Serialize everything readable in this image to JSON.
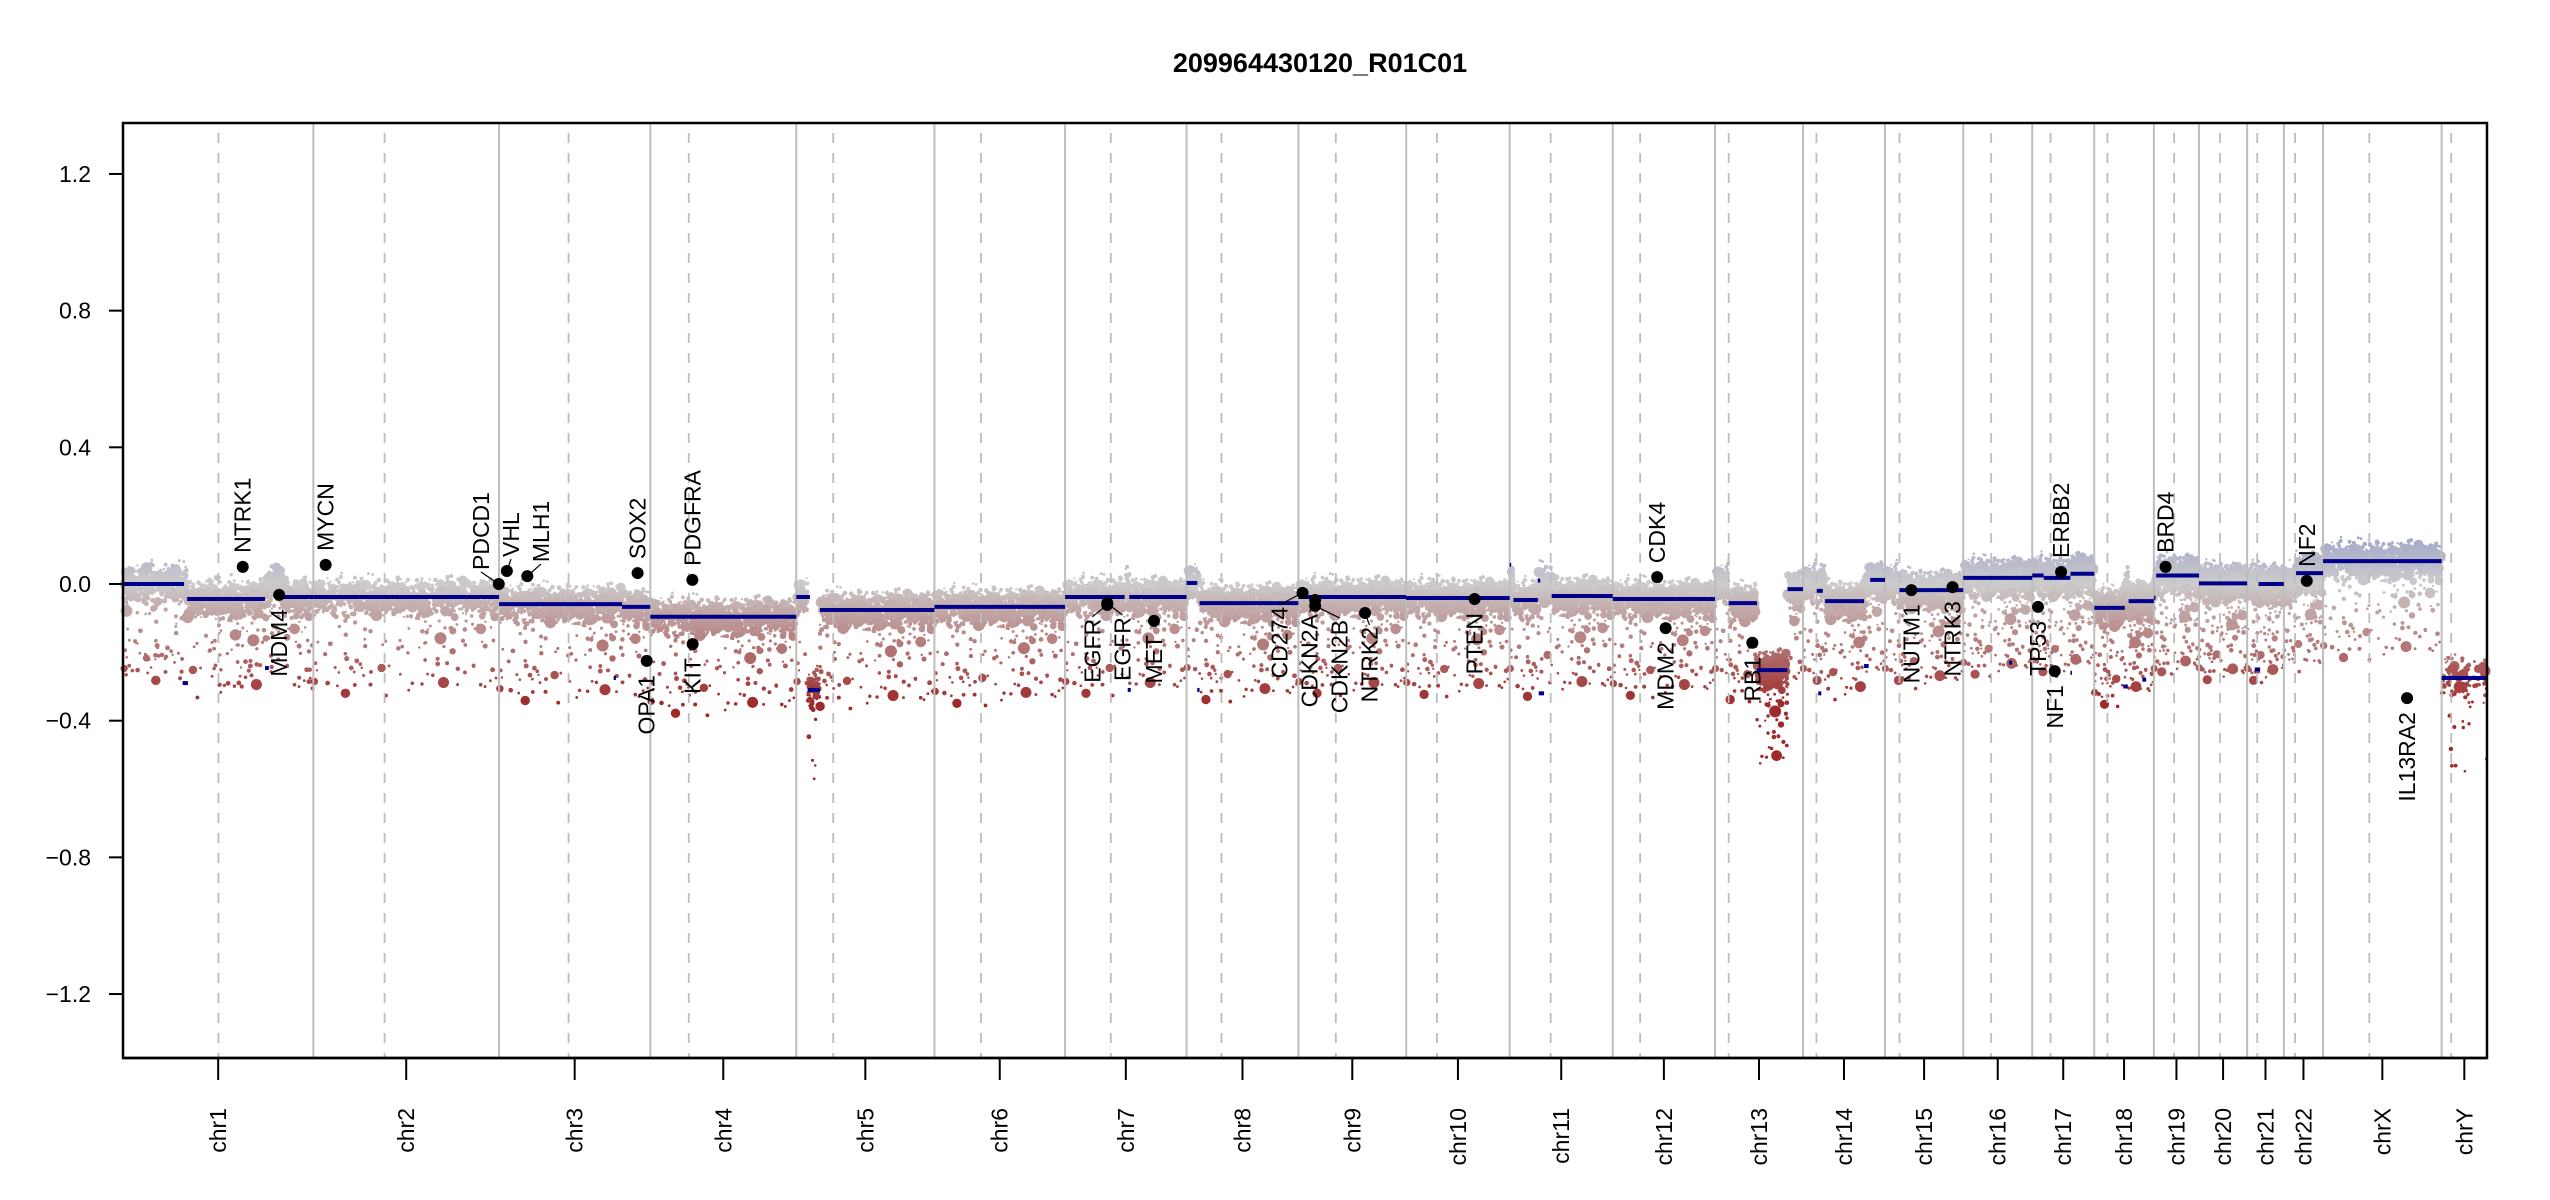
{
  "chart_data": {
    "type": "scatter",
    "title": "209964430120_R01C01",
    "xlabel": "",
    "ylabel": "",
    "ylim": [
      -1.35,
      1.35
    ],
    "y_ticks": [
      {
        "value": 1.2,
        "label": "1.2"
      },
      {
        "value": 0.8,
        "label": "0.8"
      },
      {
        "value": 0.4,
        "label": "0.4"
      },
      {
        "value": 0.0,
        "label": "0.0"
      },
      {
        "value": -0.4,
        "label": "−0.4"
      },
      {
        "value": -0.8,
        "label": "−0.8"
      },
      {
        "value": -1.2,
        "label": "−1.2"
      }
    ],
    "grid": false,
    "chromosomes": [
      {
        "name": "chr1",
        "length_mb": 249.25,
        "centromere_mb": 125.0
      },
      {
        "name": "chr2",
        "length_mb": 243.2,
        "centromere_mb": 93.3
      },
      {
        "name": "chr3",
        "length_mb": 198.0,
        "centromere_mb": 91.0
      },
      {
        "name": "chr4",
        "length_mb": 191.15,
        "centromere_mb": 50.4
      },
      {
        "name": "chr5",
        "length_mb": 180.9,
        "centromere_mb": 48.4
      },
      {
        "name": "chr6",
        "length_mb": 171.1,
        "centromere_mb": 61.0
      },
      {
        "name": "chr7",
        "length_mb": 159.1,
        "centromere_mb": 59.9
      },
      {
        "name": "chr8",
        "length_mb": 146.4,
        "centromere_mb": 45.6
      },
      {
        "name": "chr9",
        "length_mb": 141.2,
        "centromere_mb": 49.0
      },
      {
        "name": "chr10",
        "length_mb": 135.5,
        "centromere_mb": 40.2
      },
      {
        "name": "chr11",
        "length_mb": 135.0,
        "centromere_mb": 53.7
      },
      {
        "name": "chr12",
        "length_mb": 133.85,
        "centromere_mb": 35.8
      },
      {
        "name": "chr13",
        "length_mb": 115.2,
        "centromere_mb": 17.9
      },
      {
        "name": "chr14",
        "length_mb": 107.35,
        "centromere_mb": 17.6
      },
      {
        "name": "chr15",
        "length_mb": 102.5,
        "centromere_mb": 19.0
      },
      {
        "name": "chr16",
        "length_mb": 90.35,
        "centromere_mb": 36.6
      },
      {
        "name": "chr17",
        "length_mb": 81.2,
        "centromere_mb": 24.0
      },
      {
        "name": "chr18",
        "length_mb": 78.1,
        "centromere_mb": 17.2
      },
      {
        "name": "chr19",
        "length_mb": 59.1,
        "centromere_mb": 26.5
      },
      {
        "name": "chr20",
        "length_mb": 63.0,
        "centromere_mb": 27.5
      },
      {
        "name": "chr21",
        "length_mb": 48.1,
        "centromere_mb": 13.2
      },
      {
        "name": "chr22",
        "length_mb": 51.3,
        "centromere_mb": 14.7
      },
      {
        "name": "chrX",
        "length_mb": 155.3,
        "centromere_mb": 60.6
      },
      {
        "name": "chrY",
        "length_mb": 59.4,
        "centromere_mb": 12.5
      }
    ],
    "segments": [
      {
        "chr": "chr1",
        "start_mb": 0,
        "end_mb": 80,
        "value": 0.0
      },
      {
        "chr": "chr1",
        "start_mb": 78,
        "end_mb": 85,
        "value": -0.29
      },
      {
        "chr": "chr1",
        "start_mb": 84,
        "end_mb": 186,
        "value": -0.044
      },
      {
        "chr": "chr1",
        "start_mb": 186,
        "end_mb": 191,
        "value": -0.246
      },
      {
        "chr": "chr1",
        "start_mb": 209,
        "end_mb": 249.25,
        "value": -0.038
      },
      {
        "chr": "chr2",
        "start_mb": 0,
        "end_mb": 243.2,
        "value": -0.038
      },
      {
        "chr": "chr3",
        "start_mb": 0,
        "end_mb": 161,
        "value": -0.059
      },
      {
        "chr": "chr3",
        "start_mb": 161,
        "end_mb": 198,
        "value": -0.067
      },
      {
        "chr": "chr3",
        "start_mb": 150,
        "end_mb": 153,
        "value": -0.275
      },
      {
        "chr": "chr4",
        "start_mb": 0,
        "end_mb": 191.15,
        "value": -0.096
      },
      {
        "chr": "chr5",
        "start_mb": 0,
        "end_mb": 18,
        "value": -0.038
      },
      {
        "chr": "chr5",
        "start_mb": 15,
        "end_mb": 31,
        "value": -0.31
      },
      {
        "chr": "chr5",
        "start_mb": 31,
        "end_mb": 180.9,
        "value": -0.076
      },
      {
        "chr": "chr6",
        "start_mb": 0,
        "end_mb": 171.1,
        "value": -0.067
      },
      {
        "chr": "chr7",
        "start_mb": 0,
        "end_mb": 78,
        "value": -0.038
      },
      {
        "chr": "chr7",
        "start_mb": 82,
        "end_mb": 86,
        "value": -0.31
      },
      {
        "chr": "chr7",
        "start_mb": 84,
        "end_mb": 159.1,
        "value": -0.038
      },
      {
        "chr": "chr8",
        "start_mb": 0,
        "end_mb": 14,
        "value": 0.003
      },
      {
        "chr": "chr8",
        "start_mb": 14,
        "end_mb": 17,
        "value": -0.31
      },
      {
        "chr": "chr8",
        "start_mb": 17,
        "end_mb": 146.4,
        "value": -0.056
      },
      {
        "chr": "chr9",
        "start_mb": 0,
        "end_mb": 141.2,
        "value": -0.038
      },
      {
        "chr": "chr10",
        "start_mb": 0,
        "end_mb": 135.5,
        "value": -0.041
      },
      {
        "chr": "chr11",
        "start_mb": 0,
        "end_mb": 2,
        "value": 0.056
      },
      {
        "chr": "chr11",
        "start_mb": 5,
        "end_mb": 37,
        "value": -0.047
      },
      {
        "chr": "chr11",
        "start_mb": 37,
        "end_mb": 40,
        "value": 0.01
      },
      {
        "chr": "chr11",
        "start_mb": 38,
        "end_mb": 45,
        "value": -0.32
      },
      {
        "chr": "chr11",
        "start_mb": 55,
        "end_mb": 135.0,
        "value": -0.035
      },
      {
        "chr": "chr12",
        "start_mb": 0,
        "end_mb": 133.85,
        "value": -0.044
      },
      {
        "chr": "chr13",
        "start_mb": 18,
        "end_mb": 55,
        "value": -0.056
      },
      {
        "chr": "chr13",
        "start_mb": 55,
        "end_mb": 95,
        "value": -0.252
      },
      {
        "chr": "chr13",
        "start_mb": 95,
        "end_mb": 115.2,
        "value": -0.015
      },
      {
        "chr": "chr14",
        "start_mb": 18,
        "end_mb": 26,
        "value": -0.02
      },
      {
        "chr": "chr14",
        "start_mb": 20,
        "end_mb": 24,
        "value": -0.32
      },
      {
        "chr": "chr14",
        "start_mb": 29,
        "end_mb": 80,
        "value": -0.05
      },
      {
        "chr": "chr14",
        "start_mb": 80,
        "end_mb": 86,
        "value": -0.24
      },
      {
        "chr": "chr14",
        "start_mb": 88,
        "end_mb": 107.35,
        "value": 0.012
      },
      {
        "chr": "chr15",
        "start_mb": 19,
        "end_mb": 102.5,
        "value": -0.018
      },
      {
        "chr": "chr16",
        "start_mb": 0,
        "end_mb": 90.35,
        "value": 0.018
      },
      {
        "chr": "chr16",
        "start_mb": 60,
        "end_mb": 64,
        "value": -0.23
      },
      {
        "chr": "chr17",
        "start_mb": 0,
        "end_mb": 15,
        "value": 0.025
      },
      {
        "chr": "chr17",
        "start_mb": 15,
        "end_mb": 50,
        "value": 0.018
      },
      {
        "chr": "chr17",
        "start_mb": 50,
        "end_mb": 52,
        "value": -0.26
      },
      {
        "chr": "chr17",
        "start_mb": 50,
        "end_mb": 81.2,
        "value": 0.03
      },
      {
        "chr": "chr18",
        "start_mb": 0,
        "end_mb": 40,
        "value": -0.07
      },
      {
        "chr": "chr18",
        "start_mb": 38,
        "end_mb": 44,
        "value": -0.3
      },
      {
        "chr": "chr18",
        "start_mb": 45,
        "end_mb": 78.1,
        "value": -0.05
      },
      {
        "chr": "chr18",
        "start_mb": 63,
        "end_mb": 68,
        "value": -0.28
      },
      {
        "chr": "chr19",
        "start_mb": 0,
        "end_mb": 2,
        "value": -0.04
      },
      {
        "chr": "chr19",
        "start_mb": 3,
        "end_mb": 59.1,
        "value": 0.025
      },
      {
        "chr": "chr20",
        "start_mb": 0,
        "end_mb": 63.0,
        "value": 0.002
      },
      {
        "chr": "chr21",
        "start_mb": 15,
        "end_mb": 48.1,
        "value": 0.0
      },
      {
        "chr": "chr21",
        "start_mb": 10,
        "end_mb": 17,
        "value": -0.25
      },
      {
        "chr": "chr22",
        "start_mb": 16,
        "end_mb": 51.3,
        "value": 0.032
      },
      {
        "chr": "chrX",
        "start_mb": 0,
        "end_mb": 155.3,
        "value": 0.067
      },
      {
        "chr": "chrY",
        "start_mb": 0,
        "end_mb": 59.4,
        "value": -0.275
      }
    ],
    "genes": [
      {
        "name": "NTRK1",
        "chr": "chr1",
        "pos_mb": 156.8,
        "value": 0.05,
        "label_side": "above"
      },
      {
        "name": "MDM4",
        "chr": "chr1",
        "pos_mb": 204.5,
        "value": -0.032,
        "label_side": "below"
      },
      {
        "name": "MYCN",
        "chr": "chr2",
        "pos_mb": 16.1,
        "value": 0.056,
        "label_side": "above"
      },
      {
        "name": "PDCD1",
        "chr": "chr2",
        "pos_mb": 242.8,
        "value": 0.0,
        "label_side": "above"
      },
      {
        "name": "VHL",
        "chr": "chr3",
        "pos_mb": 10.2,
        "value": 0.038,
        "label_side": "above"
      },
      {
        "name": "MLH1",
        "chr": "chr3",
        "pos_mb": 37.0,
        "value": 0.023,
        "label_side": "above"
      },
      {
        "name": "SOX2",
        "chr": "chr3",
        "pos_mb": 181.4,
        "value": 0.032,
        "label_side": "above"
      },
      {
        "name": "OPA1",
        "chr": "chr3",
        "pos_mb": 193.3,
        "value": -0.225,
        "label_side": "below"
      },
      {
        "name": "PDGFRA",
        "chr": "chr4",
        "pos_mb": 55.1,
        "value": 0.012,
        "label_side": "above"
      },
      {
        "name": "KIT",
        "chr": "chr4",
        "pos_mb": 55.5,
        "value": -0.176,
        "label_side": "below"
      },
      {
        "name": "EGFR",
        "chr": "chr7",
        "pos_mb": 55.2,
        "value": -0.061,
        "label_side": "below"
      },
      {
        "name": "EGFR",
        "chr": "chr7",
        "pos_mb": 55.3,
        "value": -0.056,
        "label_side": "below"
      },
      {
        "name": "MET",
        "chr": "chr7",
        "pos_mb": 116.4,
        "value": -0.108,
        "label_side": "below"
      },
      {
        "name": "CD274",
        "chr": "chr9",
        "pos_mb": 5.45,
        "value": -0.026,
        "label_side": "below"
      },
      {
        "name": "CDKN2A",
        "chr": "chr9",
        "pos_mb": 21.97,
        "value": -0.047,
        "label_side": "below"
      },
      {
        "name": "CDKN2B",
        "chr": "chr9",
        "pos_mb": 22.0,
        "value": -0.064,
        "label_side": "below"
      },
      {
        "name": "NTRK2",
        "chr": "chr9",
        "pos_mb": 87.3,
        "value": -0.085,
        "label_side": "below"
      },
      {
        "name": "PTEN",
        "chr": "chr10",
        "pos_mb": 89.6,
        "value": -0.044,
        "label_side": "below"
      },
      {
        "name": "CDK4",
        "chr": "chr12",
        "pos_mb": 58.1,
        "value": 0.02,
        "label_side": "above"
      },
      {
        "name": "MDM2",
        "chr": "chr12",
        "pos_mb": 69.2,
        "value": -0.129,
        "label_side": "below"
      },
      {
        "name": "RB1",
        "chr": "chr13",
        "pos_mb": 48.9,
        "value": -0.172,
        "label_side": "below"
      },
      {
        "name": "NUTM1",
        "chr": "chr15",
        "pos_mb": 34.6,
        "value": -0.018,
        "label_side": "below"
      },
      {
        "name": "NTRK3",
        "chr": "chr15",
        "pos_mb": 88.5,
        "value": -0.009,
        "label_side": "below"
      },
      {
        "name": "TP53",
        "chr": "chr17",
        "pos_mb": 7.57,
        "value": -0.067,
        "label_side": "below"
      },
      {
        "name": "NF1",
        "chr": "chr17",
        "pos_mb": 29.5,
        "value": -0.255,
        "label_side": "below"
      },
      {
        "name": "ERBB2",
        "chr": "chr17",
        "pos_mb": 37.8,
        "value": 0.035,
        "label_side": "above"
      },
      {
        "name": "BRD4",
        "chr": "chr19",
        "pos_mb": 15.3,
        "value": 0.05,
        "label_side": "above"
      },
      {
        "name": "NF2",
        "chr": "chr22",
        "pos_mb": 30.0,
        "value": 0.009,
        "label_side": "above"
      },
      {
        "name": "IL13RA2",
        "chr": "chrX",
        "pos_mb": 110.0,
        "value": -0.334,
        "label_side": "below"
      }
    ],
    "colors": {
      "segment": "#00008b",
      "gain_probe": "#9fa3c8",
      "neutral_probe": "#cccccc",
      "loss_probe": "#9e2a2a",
      "chrom_boundary": "#bdbdbd",
      "centromere": "#bdbdbd",
      "gene_point": "#000000"
    }
  }
}
